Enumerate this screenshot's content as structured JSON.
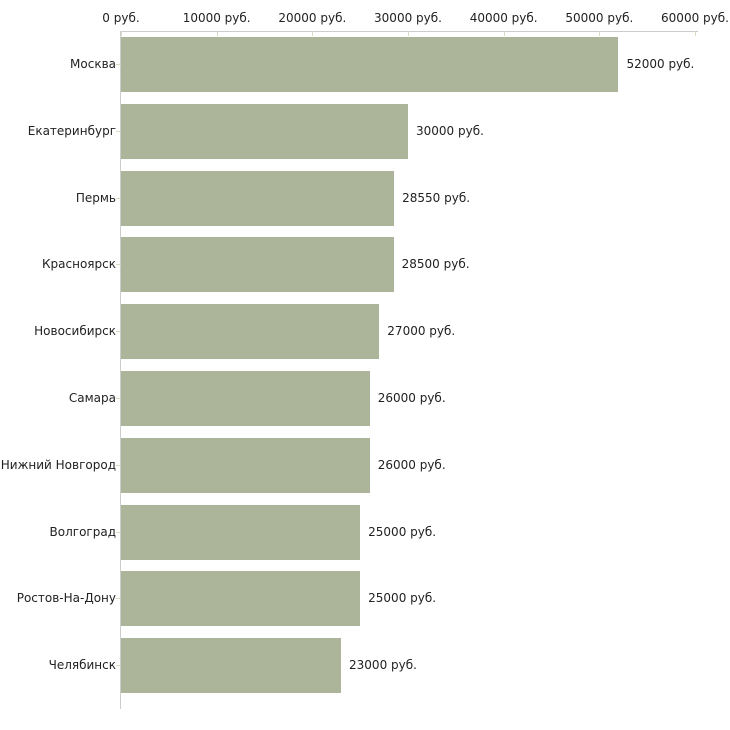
{
  "chart_data": {
    "type": "bar",
    "orientation": "horizontal",
    "categories": [
      "Москва",
      "Екатеринбург",
      "Пермь",
      "Красноярск",
      "Новосибирск",
      "Самара",
      "Нижний Новгород",
      "Волгоград",
      "Ростов-На-Дону",
      "Челябинск"
    ],
    "values": [
      52000,
      30000,
      28550,
      28500,
      27000,
      26000,
      26000,
      25000,
      25000,
      23000
    ],
    "value_labels": [
      "52000 руб.",
      "30000 руб.",
      "28550 руб.",
      "28500 руб.",
      "27000 руб.",
      "26000 руб.",
      "26000 руб.",
      "25000 руб.",
      "25000 руб.",
      "23000 руб."
    ],
    "x_ticks": [
      {
        "value": 0,
        "label": "0 руб."
      },
      {
        "value": 10000,
        "label": "10000 руб."
      },
      {
        "value": 20000,
        "label": "20000 руб."
      },
      {
        "value": 30000,
        "label": "30000 руб."
      },
      {
        "value": 40000,
        "label": "40000 руб."
      },
      {
        "value": 50000,
        "label": "50000 руб."
      },
      {
        "value": 60000,
        "label": "60000 руб."
      }
    ],
    "xlim": [
      0,
      60000
    ],
    "unit": "руб.",
    "grid": false,
    "legend": "none",
    "colors": {
      "bar": "#acb499",
      "axis_line": "#cccccc",
      "tick_mark": "#d9dbc8",
      "text": "#222222",
      "background": "#ffffff"
    }
  }
}
